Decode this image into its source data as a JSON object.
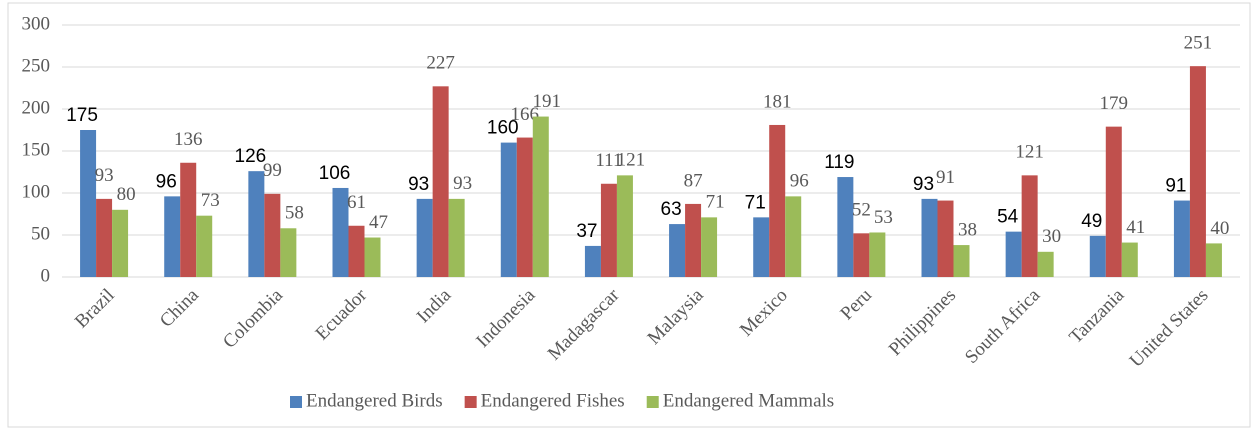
{
  "chart_data": {
    "type": "bar",
    "categories": [
      "Brazil",
      "China",
      "Colombia",
      "Ecuador",
      "India",
      "Indonesia",
      "Madagascar",
      "Malaysia",
      "Mexico",
      "Peru",
      "Philippines",
      "South Africa",
      "Tanzania",
      "United States"
    ],
    "series": [
      {
        "name": "Endangered Birds",
        "color": "#4f81bd",
        "values": [
          175,
          96,
          126,
          106,
          93,
          160,
          37,
          63,
          71,
          119,
          93,
          54,
          49,
          91
        ]
      },
      {
        "name": "Endangered Fishes",
        "color": "#c0504d",
        "values": [
          93,
          136,
          99,
          61,
          227,
          166,
          111,
          87,
          181,
          52,
          91,
          121,
          179,
          251
        ]
      },
      {
        "name": "Endangered Mammals",
        "color": "#9bbb59",
        "values": [
          80,
          73,
          58,
          47,
          93,
          191,
          121,
          71,
          96,
          53,
          38,
          30,
          41,
          40
        ]
      }
    ],
    "ylim": [
      0,
      300
    ],
    "yticks": [
      0,
      50,
      100,
      150,
      200,
      250,
      300
    ],
    "grid": true,
    "legend": "bottom"
  }
}
